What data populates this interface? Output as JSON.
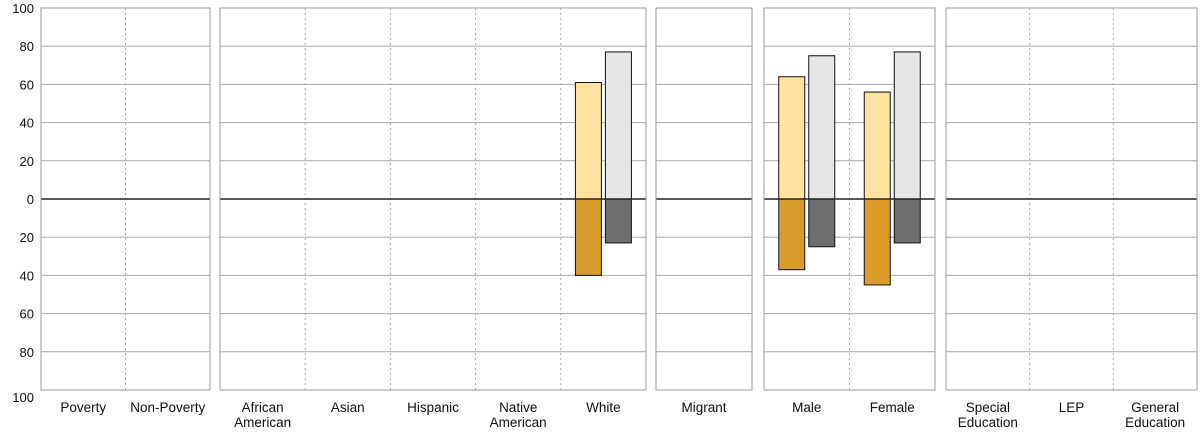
{
  "chart_data": {
    "type": "bar",
    "title": "",
    "xlabel": "",
    "ylabel": "",
    "ylim": [
      -100,
      100
    ],
    "y_ticks": [
      {
        "value": 100,
        "label": "100"
      },
      {
        "value": 80,
        "label": "80"
      },
      {
        "value": 60,
        "label": "60"
      },
      {
        "value": 40,
        "label": "40"
      },
      {
        "value": 20,
        "label": "20"
      },
      {
        "value": 0,
        "label": "0"
      },
      {
        "value": -20,
        "label": "20"
      },
      {
        "value": -40,
        "label": "40"
      },
      {
        "value": -60,
        "label": "60"
      },
      {
        "value": -80,
        "label": "80"
      },
      {
        "value": -100,
        "label": "100"
      }
    ],
    "grid": true,
    "legend": "none",
    "colors": {
      "series_a_upper": "#ffe2a0",
      "series_a_lower": "#d89d2c",
      "series_b_upper": "#e6e6e8",
      "series_b_lower": "#6e6e6e",
      "gridline": "#a8a8a8",
      "frame": "#9a9a9a",
      "zero_line": "#222222"
    },
    "panels": [
      {
        "id": "poverty",
        "categories": [
          {
            "label": [
              "Poverty"
            ],
            "a_up": 0,
            "a_down": 0,
            "b_up": 0,
            "b_down": 0
          },
          {
            "label": [
              "Non-Poverty"
            ],
            "a_up": 0,
            "a_down": 0,
            "b_up": 0,
            "b_down": 0
          }
        ]
      },
      {
        "id": "ethnicity",
        "categories": [
          {
            "label": [
              "African",
              "American"
            ],
            "a_up": 0,
            "a_down": 0,
            "b_up": 0,
            "b_down": 0
          },
          {
            "label": [
              "Asian"
            ],
            "a_up": 0,
            "a_down": 0,
            "b_up": 0,
            "b_down": 0
          },
          {
            "label": [
              "Hispanic"
            ],
            "a_up": 0,
            "a_down": 0,
            "b_up": 0,
            "b_down": 0
          },
          {
            "label": [
              "Native",
              "American"
            ],
            "a_up": 0,
            "a_down": 0,
            "b_up": 0,
            "b_down": 0
          },
          {
            "label": [
              "White"
            ],
            "a_up": 61,
            "a_down": 40,
            "b_up": 77,
            "b_down": 23
          }
        ]
      },
      {
        "id": "migrant",
        "categories": [
          {
            "label": [
              "Migrant"
            ],
            "a_up": 0,
            "a_down": 0,
            "b_up": 0,
            "b_down": 0
          }
        ]
      },
      {
        "id": "gender",
        "categories": [
          {
            "label": [
              "Male"
            ],
            "a_up": 64,
            "a_down": 37,
            "b_up": 75,
            "b_down": 25
          },
          {
            "label": [
              "Female"
            ],
            "a_up": 56,
            "a_down": 45,
            "b_up": 77,
            "b_down": 23
          }
        ]
      },
      {
        "id": "program",
        "categories": [
          {
            "label": [
              "Special",
              "Education"
            ],
            "a_up": 0,
            "a_down": 0,
            "b_up": 0,
            "b_down": 0
          },
          {
            "label": [
              "LEP"
            ],
            "a_up": 0,
            "a_down": 0,
            "b_up": 0,
            "b_down": 0
          },
          {
            "label": [
              "General",
              "Education"
            ],
            "a_up": 0,
            "a_down": 0,
            "b_up": 0,
            "b_down": 0
          }
        ]
      }
    ]
  }
}
